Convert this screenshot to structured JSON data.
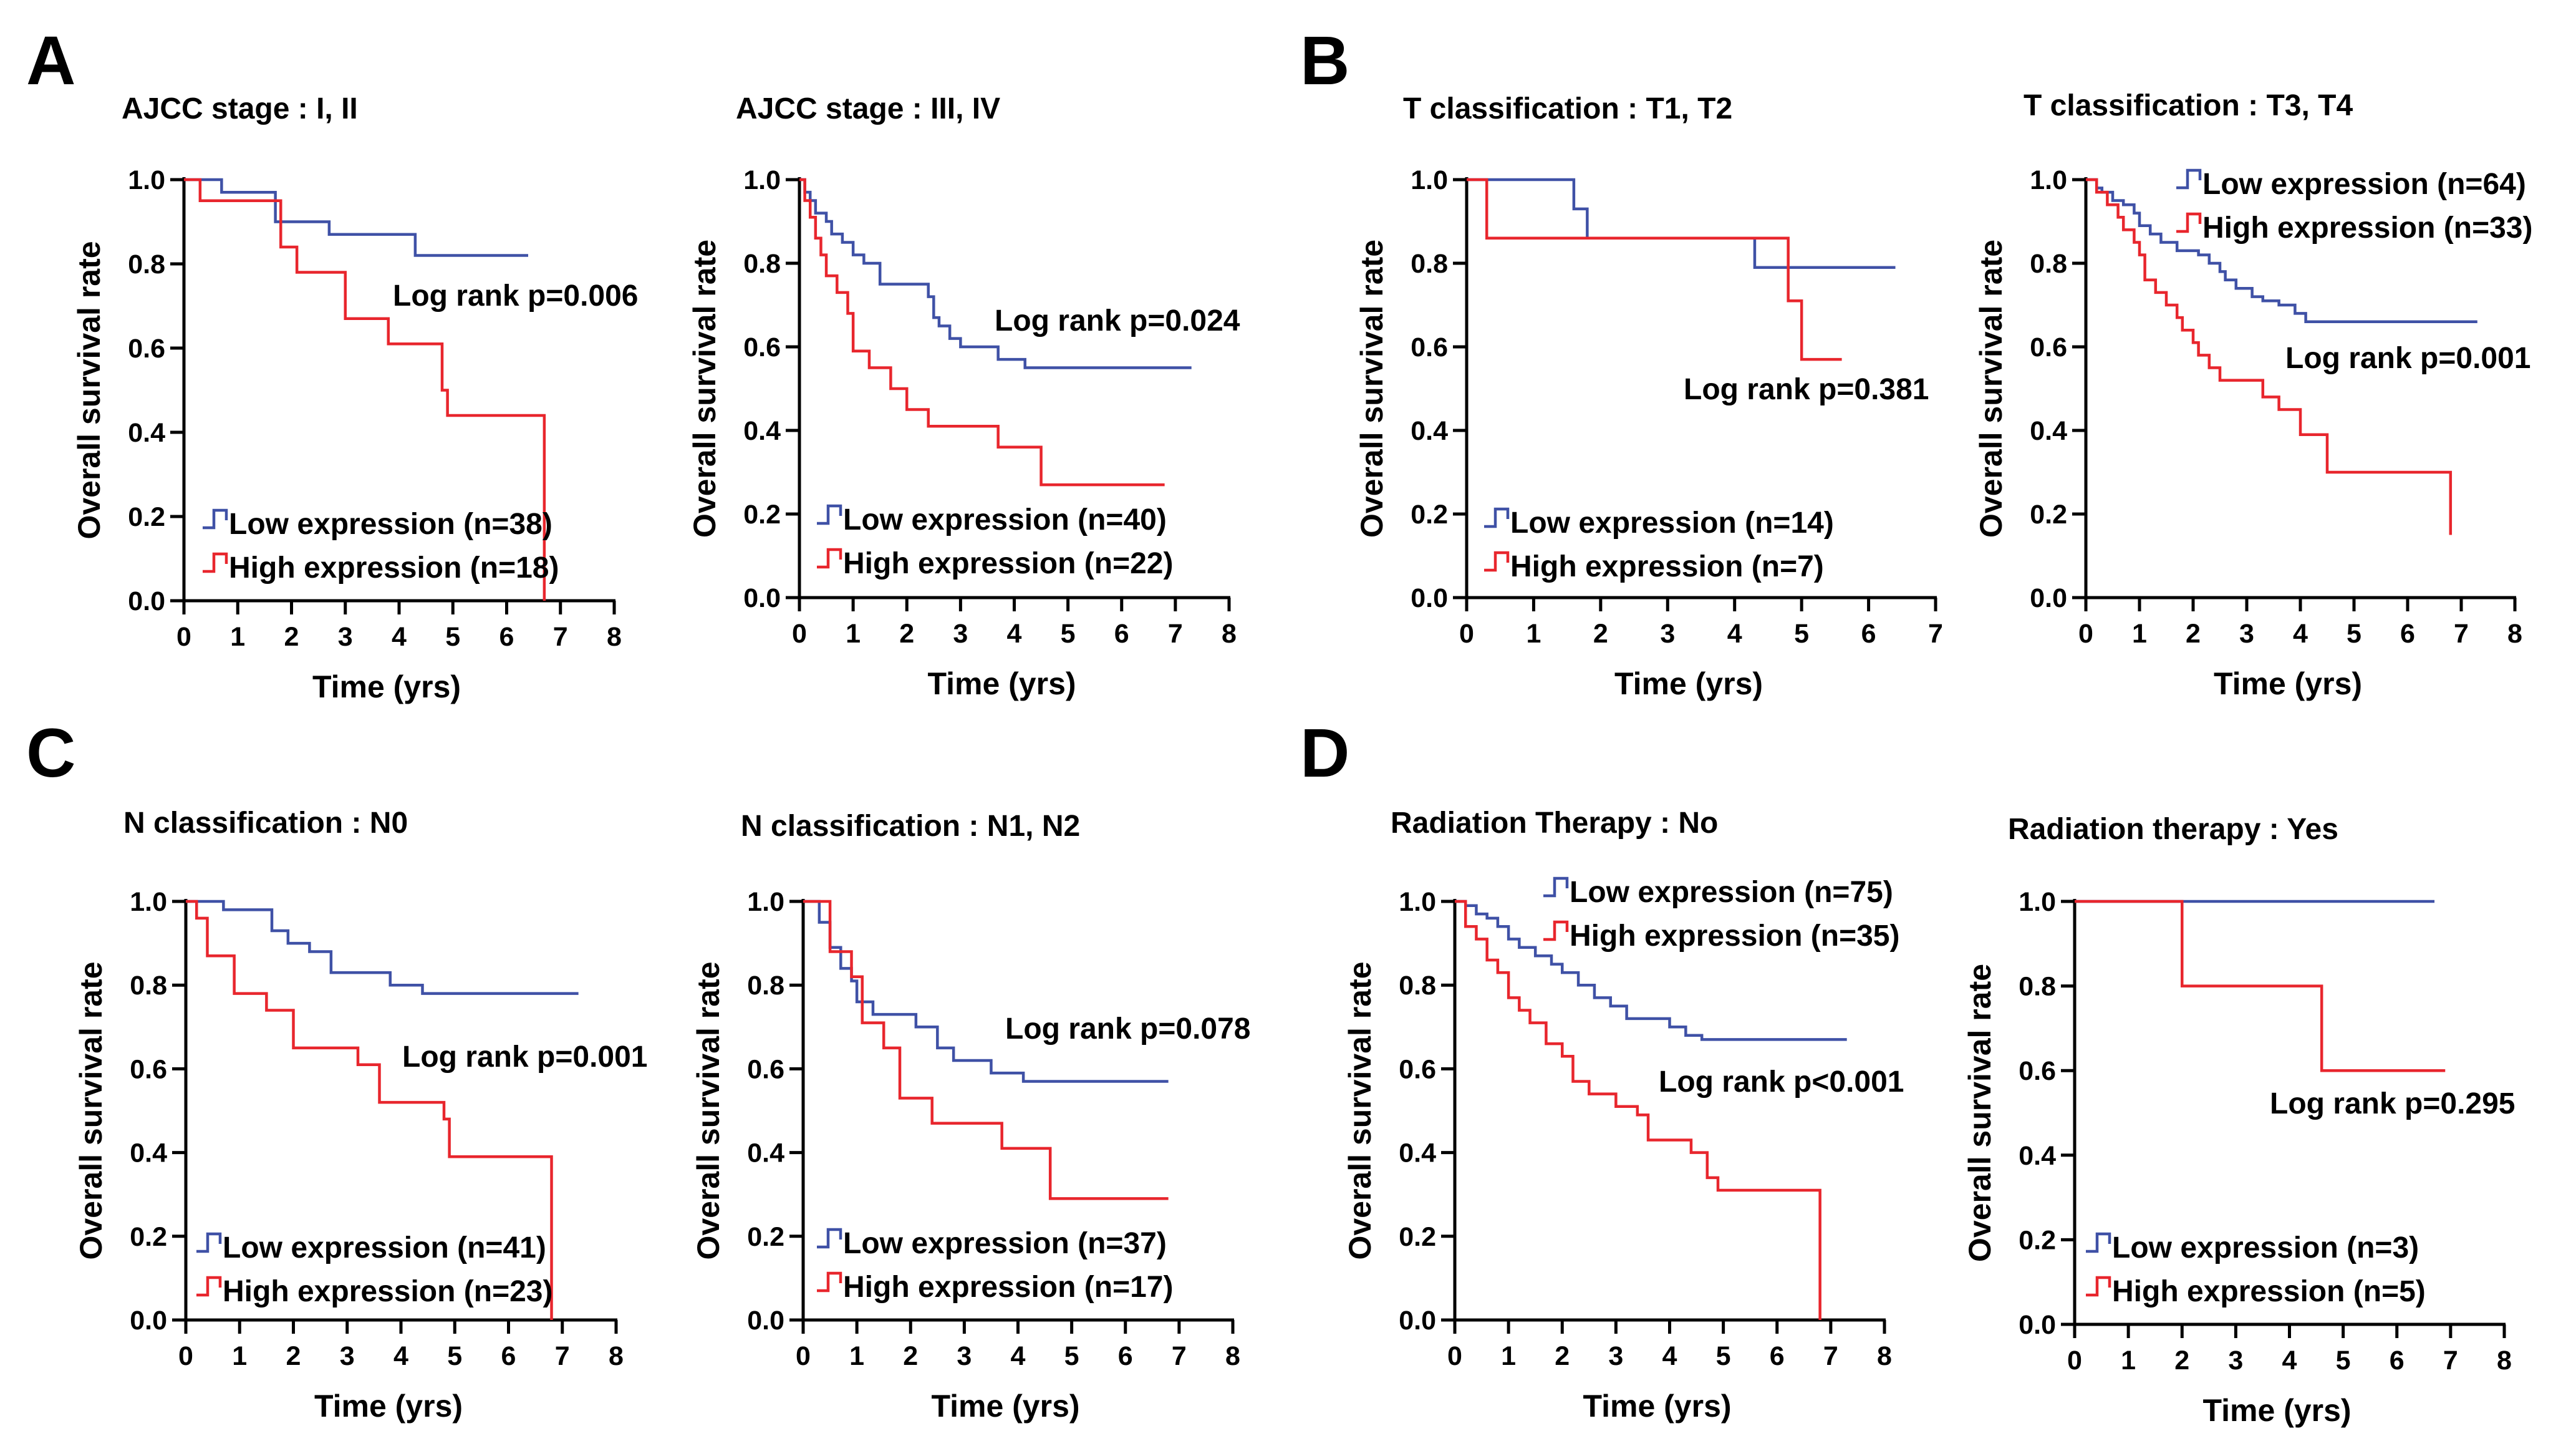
{
  "colors": {
    "low": "#3f51a6",
    "high": "#e8262d"
  },
  "panel_labels": [
    "A",
    "B",
    "C",
    "D"
  ],
  "chart_data": [
    {
      "type": "line",
      "subtype": "kaplan-meier",
      "panel": "A",
      "title": "AJCC stage : I, II",
      "xlabel": "Time (yrs)",
      "ylabel": "Overall survival rate",
      "xlim": [
        0,
        8
      ],
      "ylim": [
        0,
        1
      ],
      "xticks": [
        "0",
        "1",
        "2",
        "3",
        "4",
        "5",
        "6",
        "7",
        "8"
      ],
      "yticks": [
        "0.0",
        "0.2",
        "0.4",
        "0.6",
        "0.8",
        "1.0"
      ],
      "annotation": "Log rank p=0.006",
      "series": [
        {
          "name": "Low expression (n=38)",
          "group": "low",
          "x": [
            0,
            0.7,
            1.7,
            2.7,
            4.3,
            6.4
          ],
          "y": [
            1.0,
            0.97,
            0.9,
            0.87,
            0.82,
            0.82
          ]
        },
        {
          "name": "High expression (n=18)",
          "group": "high",
          "x": [
            0,
            0.3,
            1.8,
            2.1,
            3.0,
            3.8,
            4.8,
            4.9,
            6.7,
            6.7
          ],
          "y": [
            1.0,
            0.95,
            0.84,
            0.78,
            0.67,
            0.61,
            0.5,
            0.44,
            0.44,
            0.0
          ]
        }
      ]
    },
    {
      "type": "line",
      "subtype": "kaplan-meier",
      "panel": "A",
      "title": "AJCC stage : III, IV",
      "xlabel": "Time (yrs)",
      "ylabel": "Overall survival rate",
      "xlim": [
        0,
        8
      ],
      "ylim": [
        0,
        1
      ],
      "xticks": [
        "0",
        "1",
        "2",
        "3",
        "4",
        "5",
        "6",
        "7",
        "8"
      ],
      "yticks": [
        "0.0",
        "0.2",
        "0.4",
        "0.6",
        "0.8",
        "1.0"
      ],
      "annotation": "Log rank p=0.024",
      "series": [
        {
          "name": "Low expression (n=40)",
          "group": "low",
          "x": [
            0,
            0.1,
            0.2,
            0.3,
            0.5,
            0.6,
            0.8,
            1.0,
            1.2,
            1.5,
            2.2,
            2.4,
            2.5,
            2.6,
            2.8,
            3.0,
            3.7,
            4.2,
            7.3
          ],
          "y": [
            1.0,
            0.97,
            0.95,
            0.92,
            0.9,
            0.87,
            0.85,
            0.82,
            0.8,
            0.75,
            0.75,
            0.72,
            0.67,
            0.65,
            0.62,
            0.6,
            0.57,
            0.55,
            0.55
          ]
        },
        {
          "name": "High expression (n=22)",
          "group": "high",
          "x": [
            0,
            0.1,
            0.2,
            0.3,
            0.4,
            0.5,
            0.7,
            0.9,
            1.0,
            1.3,
            1.7,
            2.0,
            2.4,
            3.7,
            4.5,
            6.8
          ],
          "y": [
            1.0,
            0.95,
            0.91,
            0.86,
            0.82,
            0.77,
            0.73,
            0.68,
            0.59,
            0.55,
            0.5,
            0.45,
            0.41,
            0.36,
            0.27,
            0.27
          ]
        }
      ]
    },
    {
      "type": "line",
      "subtype": "kaplan-meier",
      "panel": "B",
      "title": "T classification : T1, T2",
      "xlabel": "Time (yrs)",
      "ylabel": "Overall survival rate",
      "xlim": [
        0,
        7
      ],
      "ylim": [
        0,
        1
      ],
      "xticks": [
        "0",
        "1",
        "2",
        "3",
        "4",
        "5",
        "6",
        "7"
      ],
      "yticks": [
        "0.0",
        "0.2",
        "0.4",
        "0.6",
        "0.8",
        "1.0"
      ],
      "annotation": "Log rank p=0.381",
      "series": [
        {
          "name": "Low expression (n=14)",
          "group": "low",
          "x": [
            0,
            1.6,
            1.8,
            4.3,
            6.4
          ],
          "y": [
            1.0,
            0.93,
            0.86,
            0.79,
            0.79
          ]
        },
        {
          "name": "High expression (n=7)",
          "group": "high",
          "x": [
            0,
            0.3,
            4.8,
            5.0,
            5.6
          ],
          "y": [
            1.0,
            0.86,
            0.71,
            0.57,
            0.57
          ]
        }
      ]
    },
    {
      "type": "line",
      "subtype": "kaplan-meier",
      "panel": "B",
      "title": "T classification : T3, T4",
      "xlabel": "Time (yrs)",
      "ylabel": "Overall survival rate",
      "xlim": [
        0,
        8
      ],
      "ylim": [
        0,
        1
      ],
      "xticks": [
        "0",
        "1",
        "2",
        "3",
        "4",
        "5",
        "6",
        "7",
        "8"
      ],
      "yticks": [
        "0.0",
        "0.2",
        "0.4",
        "0.6",
        "0.8",
        "1.0"
      ],
      "annotation": "Log rank p=0.001",
      "series": [
        {
          "name": "Low expression (n=64)",
          "group": "low",
          "x": [
            0,
            0.2,
            0.3,
            0.5,
            0.7,
            0.9,
            1.0,
            1.2,
            1.4,
            1.7,
            2.1,
            2.3,
            2.5,
            2.6,
            2.8,
            3.1,
            3.3,
            3.6,
            3.9,
            4.1,
            4.5,
            7.3
          ],
          "y": [
            1.0,
            0.98,
            0.97,
            0.95,
            0.94,
            0.92,
            0.89,
            0.87,
            0.85,
            0.83,
            0.82,
            0.8,
            0.78,
            0.76,
            0.74,
            0.72,
            0.71,
            0.7,
            0.68,
            0.66,
            0.66,
            0.66
          ]
        },
        {
          "name": "High expression (n=33)",
          "group": "high",
          "x": [
            0,
            0.2,
            0.4,
            0.6,
            0.7,
            0.9,
            1.0,
            1.1,
            1.3,
            1.5,
            1.7,
            1.8,
            2.0,
            2.1,
            2.3,
            2.5,
            2.7,
            3.3,
            3.6,
            4.0,
            4.5,
            6.7,
            6.8
          ],
          "y": [
            1.0,
            0.97,
            0.94,
            0.91,
            0.88,
            0.85,
            0.82,
            0.76,
            0.73,
            0.7,
            0.67,
            0.64,
            0.61,
            0.58,
            0.55,
            0.52,
            0.52,
            0.48,
            0.45,
            0.39,
            0.3,
            0.3,
            0.15
          ]
        }
      ]
    },
    {
      "type": "line",
      "subtype": "kaplan-meier",
      "panel": "C",
      "title": "N classification : N0",
      "xlabel": "Time (yrs)",
      "ylabel": "Overall survival rate",
      "xlim": [
        0,
        8
      ],
      "ylim": [
        0,
        1
      ],
      "xticks": [
        "0",
        "1",
        "2",
        "3",
        "4",
        "5",
        "6",
        "7",
        "8"
      ],
      "yticks": [
        "0.0",
        "0.2",
        "0.4",
        "0.6",
        "0.8",
        "1.0"
      ],
      "annotation": "Log rank p=0.001",
      "series": [
        {
          "name": "Low expression (n=41)",
          "group": "low",
          "x": [
            0,
            0.7,
            1.6,
            1.9,
            2.3,
            2.7,
            3.8,
            4.4,
            7.3
          ],
          "y": [
            1.0,
            0.98,
            0.93,
            0.9,
            0.88,
            0.83,
            0.8,
            0.78,
            0.78
          ]
        },
        {
          "name": "High expression (n=23)",
          "group": "high",
          "x": [
            0,
            0.2,
            0.4,
            0.9,
            1.5,
            2.0,
            3.2,
            3.6,
            4.8,
            4.9,
            6.7,
            6.8
          ],
          "y": [
            1.0,
            0.96,
            0.87,
            0.78,
            0.74,
            0.65,
            0.61,
            0.52,
            0.48,
            0.39,
            0.39,
            0.0
          ]
        }
      ]
    },
    {
      "type": "line",
      "subtype": "kaplan-meier",
      "panel": "C",
      "title": "N classification : N1, N2",
      "xlabel": "Time (yrs)",
      "ylabel": "Overall survival rate",
      "xlim": [
        0,
        8
      ],
      "ylim": [
        0,
        1
      ],
      "xticks": [
        "0",
        "1",
        "2",
        "3",
        "4",
        "5",
        "6",
        "7",
        "8"
      ],
      "yticks": [
        "0.0",
        "0.2",
        "0.4",
        "0.6",
        "0.8",
        "1.0"
      ],
      "annotation": "Log rank p=0.078",
      "series": [
        {
          "name": "Low expression (n=37)",
          "group": "low",
          "x": [
            0,
            0.3,
            0.5,
            0.7,
            0.9,
            1.0,
            1.3,
            2.1,
            2.5,
            2.8,
            3.5,
            4.1,
            6.8
          ],
          "y": [
            1.0,
            0.95,
            0.89,
            0.84,
            0.81,
            0.76,
            0.73,
            0.7,
            0.65,
            0.62,
            0.59,
            0.57,
            0.57
          ]
        },
        {
          "name": "High expression (n=17)",
          "group": "high",
          "x": [
            0,
            0.5,
            0.9,
            1.1,
            1.5,
            1.8,
            2.4,
            3.7,
            4.6,
            6.8
          ],
          "y": [
            1.0,
            0.88,
            0.82,
            0.71,
            0.65,
            0.53,
            0.47,
            0.41,
            0.29,
            0.29
          ]
        }
      ]
    },
    {
      "type": "line",
      "subtype": "kaplan-meier",
      "panel": "D",
      "title": "Radiation Therapy : No",
      "xlabel": "Time (yrs)",
      "ylabel": "Overall survival rate",
      "xlim": [
        0,
        8
      ],
      "ylim": [
        0,
        1
      ],
      "xticks": [
        "0",
        "1",
        "2",
        "3",
        "4",
        "5",
        "6",
        "7",
        "8"
      ],
      "yticks": [
        "0.0",
        "0.2",
        "0.4",
        "0.6",
        "0.8",
        "1.0"
      ],
      "annotation": "Log rank p<0.001",
      "series": [
        {
          "name": "Low expression (n=75)",
          "group": "low",
          "x": [
            0,
            0.2,
            0.4,
            0.6,
            0.8,
            1.0,
            1.2,
            1.5,
            1.8,
            2.0,
            2.3,
            2.6,
            2.9,
            3.2,
            4.0,
            4.3,
            4.6,
            7.3
          ],
          "y": [
            1.0,
            0.99,
            0.97,
            0.96,
            0.94,
            0.91,
            0.89,
            0.87,
            0.85,
            0.83,
            0.8,
            0.77,
            0.75,
            0.72,
            0.7,
            0.68,
            0.67,
            0.67
          ]
        },
        {
          "name": "High expression (n=35)",
          "group": "high",
          "x": [
            0,
            0.2,
            0.4,
            0.6,
            0.8,
            1.0,
            1.2,
            1.4,
            1.7,
            2.0,
            2.2,
            2.5,
            3.0,
            3.4,
            3.6,
            4.4,
            4.7,
            4.9,
            6.7,
            6.8
          ],
          "y": [
            1.0,
            0.94,
            0.91,
            0.86,
            0.83,
            0.77,
            0.74,
            0.71,
            0.66,
            0.63,
            0.57,
            0.54,
            0.51,
            0.49,
            0.43,
            0.4,
            0.34,
            0.31,
            0.31,
            0.0
          ]
        }
      ]
    },
    {
      "type": "line",
      "subtype": "kaplan-meier",
      "panel": "D",
      "title": "Radiation therapy : Yes",
      "xlabel": "Time (yrs)",
      "ylabel": "Overall survival rate",
      "xlim": [
        0,
        8
      ],
      "ylim": [
        0,
        1
      ],
      "xticks": [
        "0",
        "1",
        "2",
        "3",
        "4",
        "5",
        "6",
        "7",
        "8"
      ],
      "yticks": [
        "0.0",
        "0.2",
        "0.4",
        "0.6",
        "0.8",
        "1.0"
      ],
      "annotation": "Log rank p=0.295",
      "series": [
        {
          "name": "Low expression (n=3)",
          "group": "low",
          "x": [
            0,
            6.7
          ],
          "y": [
            1.0,
            1.0
          ]
        },
        {
          "name": "High expression (n=5)",
          "group": "high",
          "x": [
            0,
            2.0,
            4.6,
            6.9
          ],
          "y": [
            1.0,
            0.8,
            0.6,
            0.6
          ]
        }
      ]
    }
  ]
}
